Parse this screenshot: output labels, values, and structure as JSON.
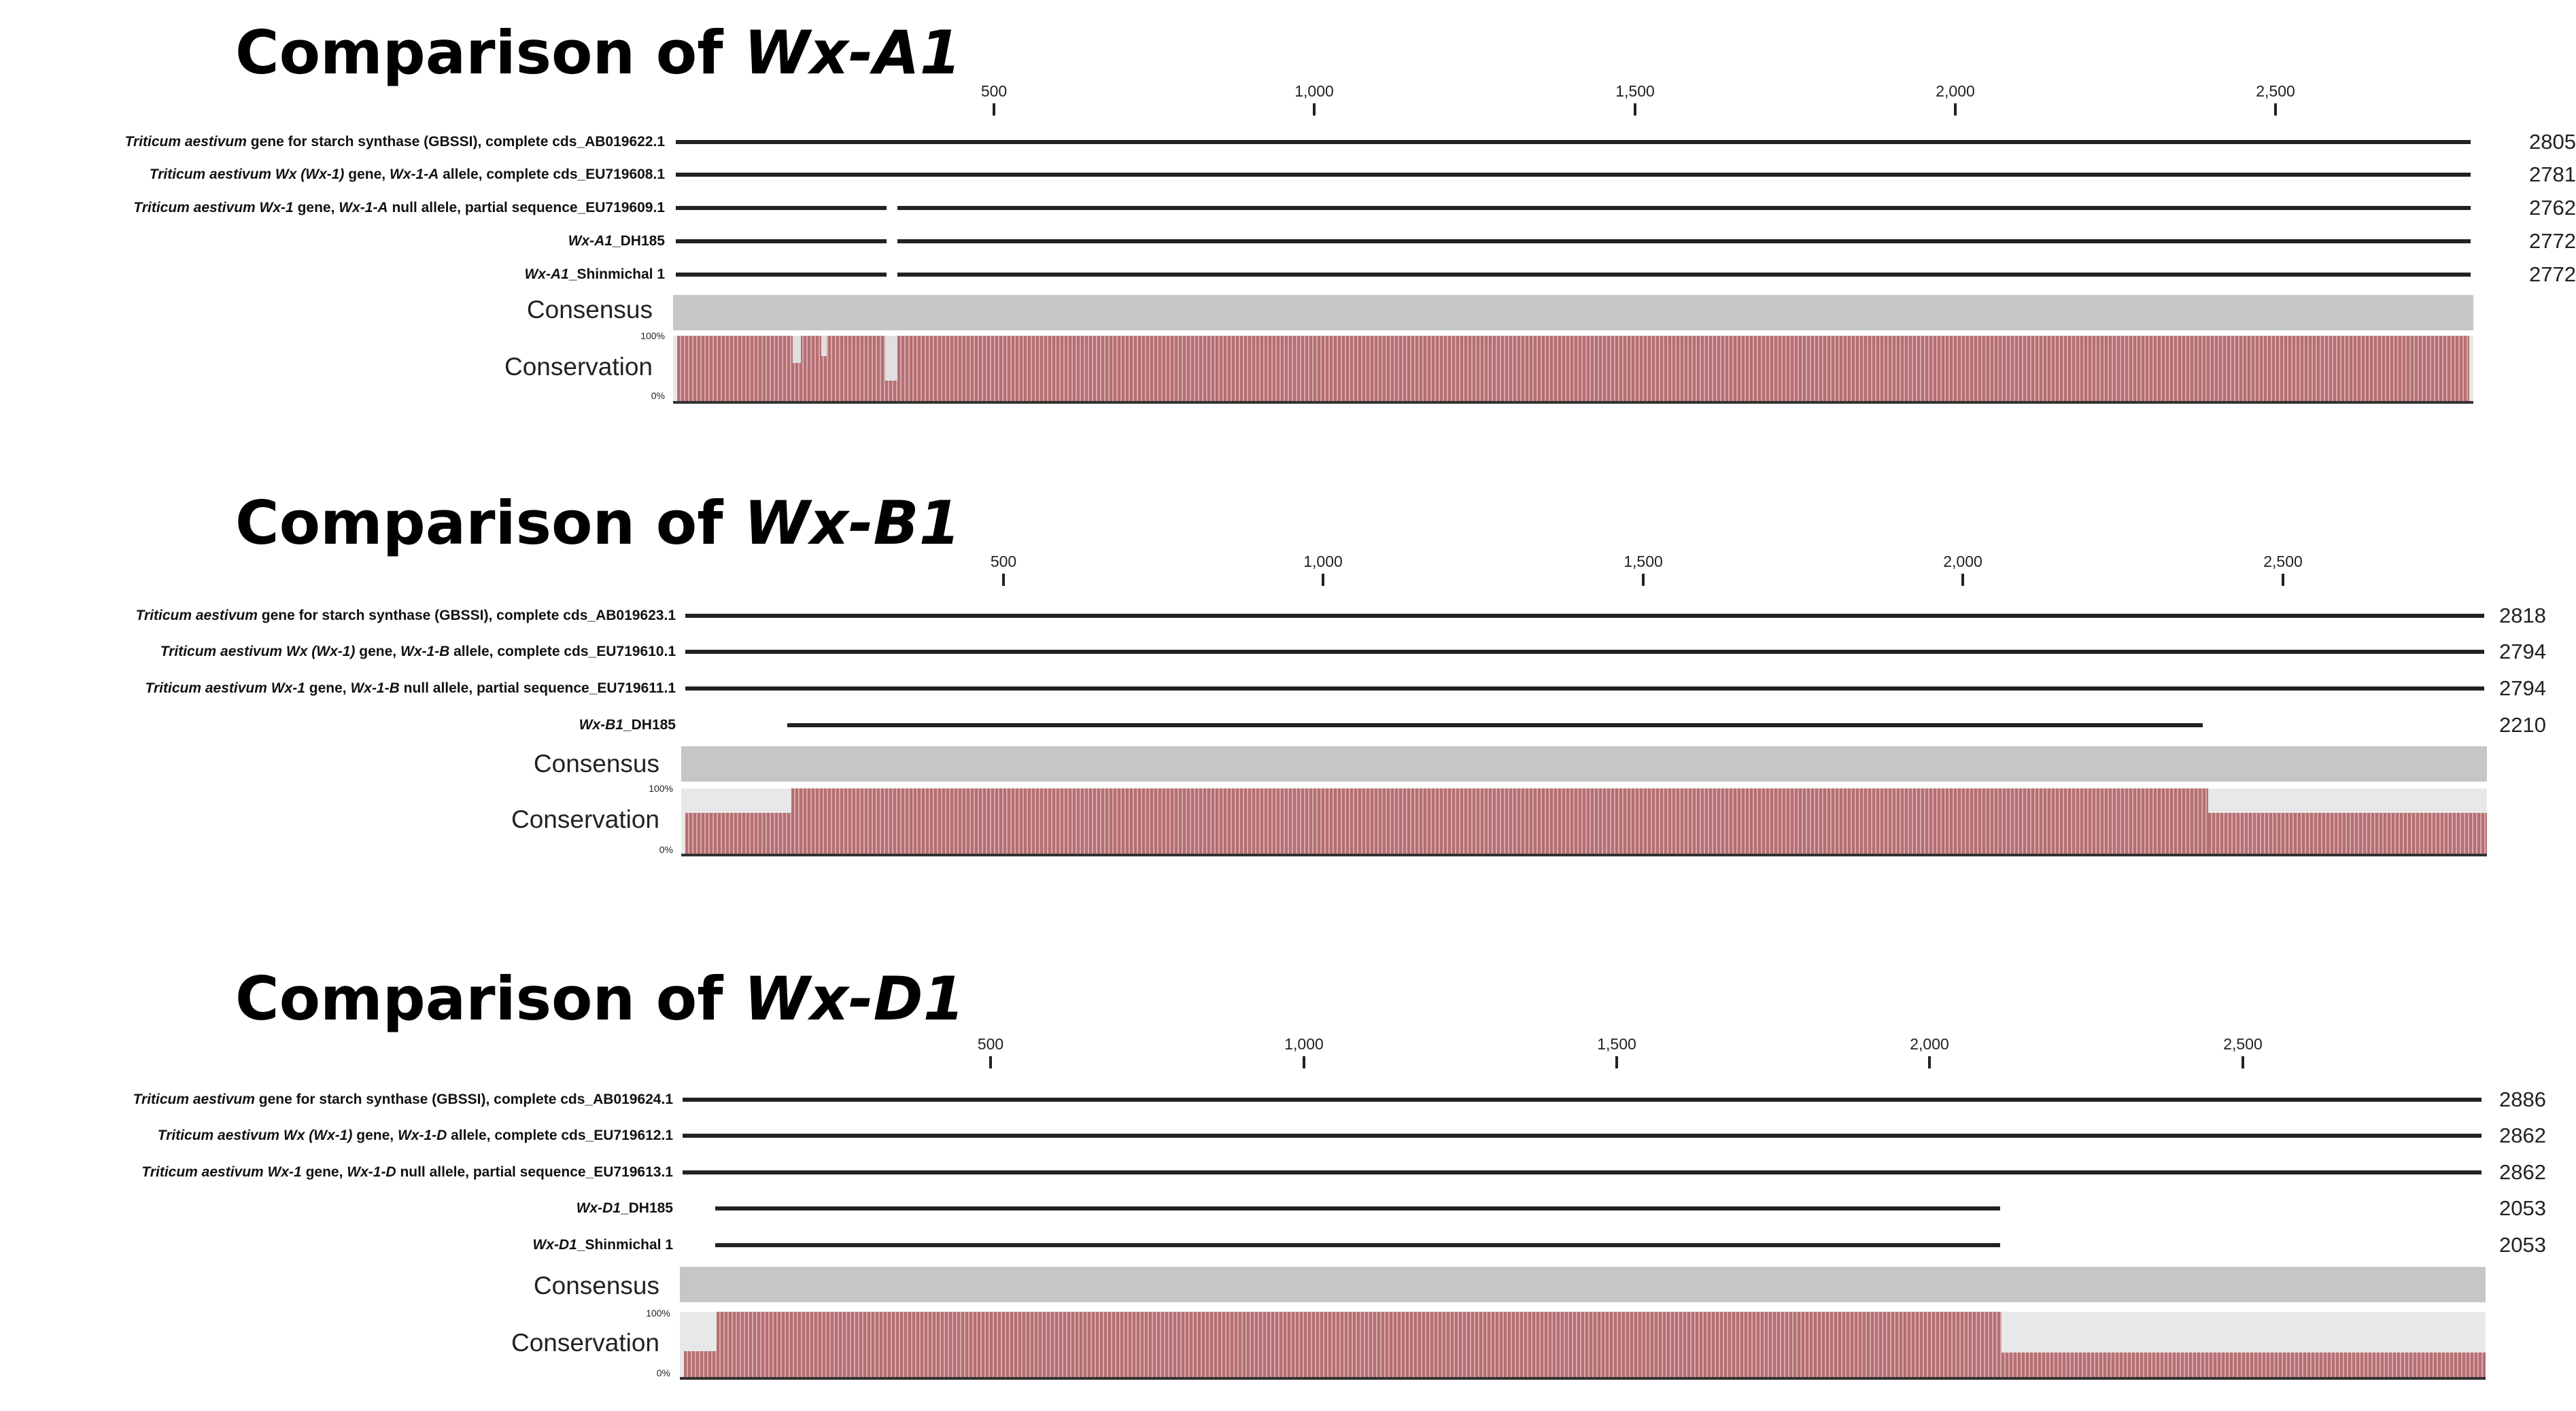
{
  "colors": {
    "conservation": "#b56f72",
    "consensus": "#c6c6c6",
    "line": "#222222"
  },
  "panels": [
    {
      "title_prefix": "Comparison of ",
      "title_gene": "Wx-A1",
      "ruler": [
        "500",
        "1,000",
        "1,500",
        "2,000",
        "2,500"
      ],
      "sequences": [
        {
          "species": "Triticum aestivum",
          "rest": " gene for starch synthase (GBSSI), complete cds_AB019622.1",
          "length": "2805"
        },
        {
          "species": "Triticum aestivum",
          "mid1": " Wx (Wx-1)",
          "rest1": " gene, ",
          "allele": "Wx-1-A",
          "rest": " allele, complete cds_EU719608.1",
          "length": "2781"
        },
        {
          "species": "Triticum aestivum",
          "mid1": " Wx-1",
          "rest1": " gene, ",
          "allele": "Wx-1-A",
          "rest": " null allele, partial sequence_EU719609.1",
          "length": "2762"
        },
        {
          "name_it": "Wx-A1",
          "name_rest": "_DH185",
          "length": "2772"
        },
        {
          "name_it": "Wx-A1",
          "name_rest": "_Shinmichal 1",
          "length": "2772"
        }
      ],
      "consensus_label": "Consensus",
      "conservation_label": "Conservation",
      "pct_high": "100%",
      "pct_low": "0%"
    },
    {
      "title_prefix": "Comparison of ",
      "title_gene": "Wx-B1",
      "ruler": [
        "500",
        "1,000",
        "1,500",
        "2,000",
        "2,500"
      ],
      "sequences": [
        {
          "species": "Triticum aestivum",
          "rest": " gene for starch synthase (GBSSI), complete cds_AB019623.1",
          "length": "2818"
        },
        {
          "species": "Triticum aestivum",
          "mid1": " Wx (Wx-1)",
          "rest1": " gene, ",
          "allele": "Wx-1-B",
          "rest": " allele, complete cds_EU719610.1",
          "length": "2794"
        },
        {
          "species": "Triticum aestivum",
          "mid1": " Wx-1",
          "rest1": " gene, ",
          "allele": "Wx-1-B",
          "rest": " null allele, partial sequence_EU719611.1",
          "length": "2794"
        },
        {
          "name_it": "Wx-B1",
          "name_rest": "_DH185",
          "length": "2210"
        }
      ],
      "consensus_label": "Consensus",
      "conservation_label": "Conservation",
      "pct_high": "100%",
      "pct_low": "0%"
    },
    {
      "title_prefix": "Comparison of ",
      "title_gene": "Wx-D1",
      "ruler": [
        "500",
        "1,000",
        "1,500",
        "2,000",
        "2,500"
      ],
      "sequences": [
        {
          "species": "Triticum aestivum",
          "rest": " gene for starch synthase (GBSSI), complete cds_AB019624.1",
          "length": "2886"
        },
        {
          "species": "Triticum aestivum",
          "mid1": " Wx (Wx-1)",
          "rest1": " gene, ",
          "allele": "Wx-1-D",
          "rest": " allele, complete cds_EU719612.1",
          "length": "2862"
        },
        {
          "species": "Triticum aestivum",
          "mid1": " Wx-1",
          "rest1": " gene, ",
          "allele": "Wx-1-D",
          "rest": " null allele, partial sequence_EU719613.1",
          "length": "2862"
        },
        {
          "name_it": "Wx-D1",
          "name_rest": "_DH185",
          "length": "2053"
        },
        {
          "name_it": "Wx-D1",
          "name_rest": "_Shinmichal 1",
          "length": "2053"
        }
      ],
      "consensus_label": "Consensus",
      "conservation_label": "Conservation",
      "pct_high": "100%",
      "pct_low": "0%"
    }
  ]
}
